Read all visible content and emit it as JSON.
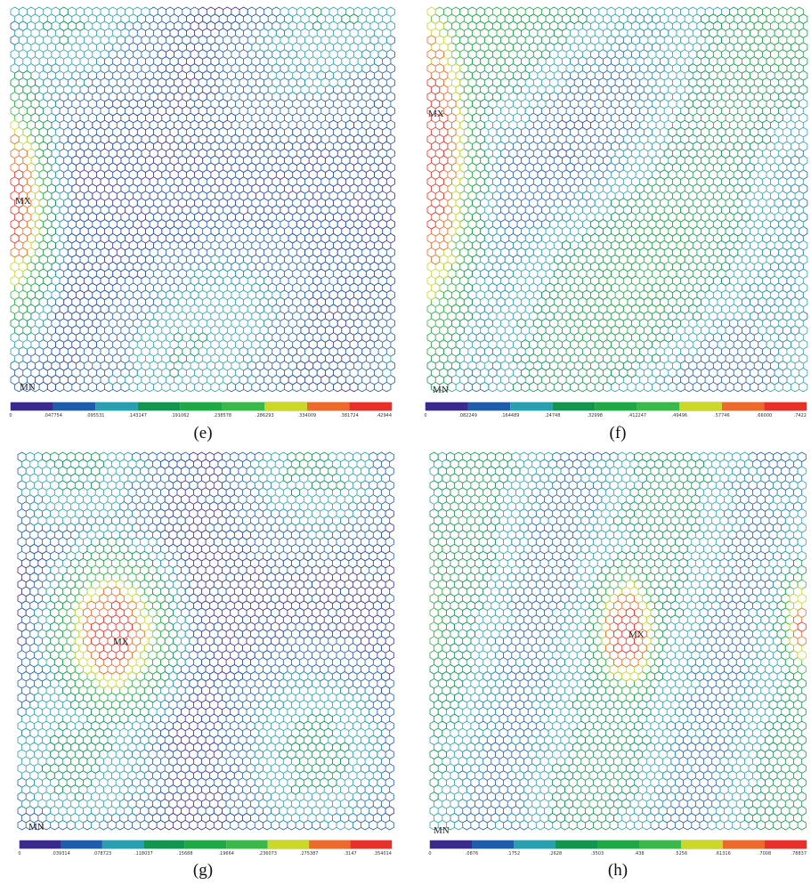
{
  "panels": [
    {
      "label": "(e)",
      "max_label": "MX",
      "min_label": "MN",
      "colorbar_labels": [
        "0",
        ".047754",
        ".095531",
        ".143147",
        ".191062",
        ".238578",
        ".286293",
        ".334009",
        ".381724",
        ".42944"
      ]
    },
    {
      "label": "(f)",
      "max_label": "MX",
      "min_label": "MN",
      "colorbar_labels": [
        "0",
        ".082249",
        ".164489",
        ".24748",
        ".32998",
        ".412247",
        ".49496",
        ".57746",
        ".66000",
        ".7422"
      ]
    },
    {
      "label": "(g)",
      "max_label": "MX",
      "min_label": "MN",
      "colorbar_labels": [
        "0",
        ".039314",
        ".078723",
        ".118037",
        ".15688",
        ".19664",
        ".236073",
        ".275387",
        ".3147",
        ".354014"
      ]
    },
    {
      "label": "(h)",
      "max_label": "MX",
      "min_label": "MN",
      "colorbar_labels": [
        "0",
        ".0876",
        ".1752",
        ".2628",
        ".3503",
        ".438",
        ".5256",
        ".61316",
        ".7008",
        ".78837"
      ]
    }
  ]
}
